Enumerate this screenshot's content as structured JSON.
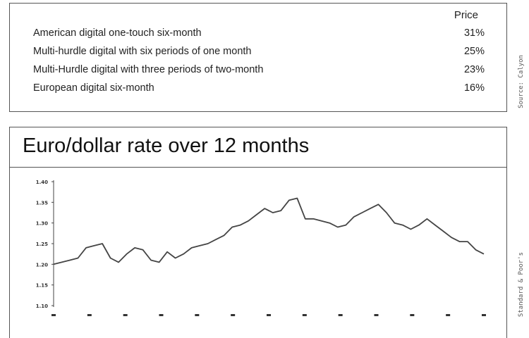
{
  "price_table": {
    "header": "Price",
    "rows": [
      {
        "label": "American digital one-touch six-month",
        "price": "31%"
      },
      {
        "label": "Multi-hurdle digital with six periods of one month",
        "price": "25%"
      },
      {
        "label": "Multi-Hurdle digital with three periods of two-month",
        "price": "23%"
      },
      {
        "label": "European digital six-month",
        "price": "16%"
      }
    ],
    "source": "Source: Calyon"
  },
  "chart_source": "Standard & Poor's",
  "chart_data": {
    "type": "line",
    "title": "Euro/dollar rate over 12 months",
    "xlabel": "",
    "ylabel": "",
    "ylim": [
      1.1,
      1.4
    ],
    "yticks": [
      "1.40",
      "1.35",
      "1.30",
      "1.25",
      "1.20",
      "1.15",
      "1.10"
    ],
    "xtick_count": 13,
    "grid": false,
    "values": [
      1.2,
      1.205,
      1.21,
      1.215,
      1.24,
      1.245,
      1.25,
      1.215,
      1.205,
      1.225,
      1.24,
      1.235,
      1.21,
      1.205,
      1.23,
      1.215,
      1.225,
      1.24,
      1.245,
      1.25,
      1.26,
      1.27,
      1.29,
      1.295,
      1.305,
      1.32,
      1.335,
      1.325,
      1.33,
      1.355,
      1.36,
      1.31,
      1.31,
      1.305,
      1.3,
      1.29,
      1.295,
      1.315,
      1.325,
      1.335,
      1.345,
      1.325,
      1.3,
      1.295,
      1.285,
      1.295,
      1.31,
      1.295,
      1.28,
      1.265,
      1.255,
      1.255,
      1.235,
      1.225
    ]
  }
}
